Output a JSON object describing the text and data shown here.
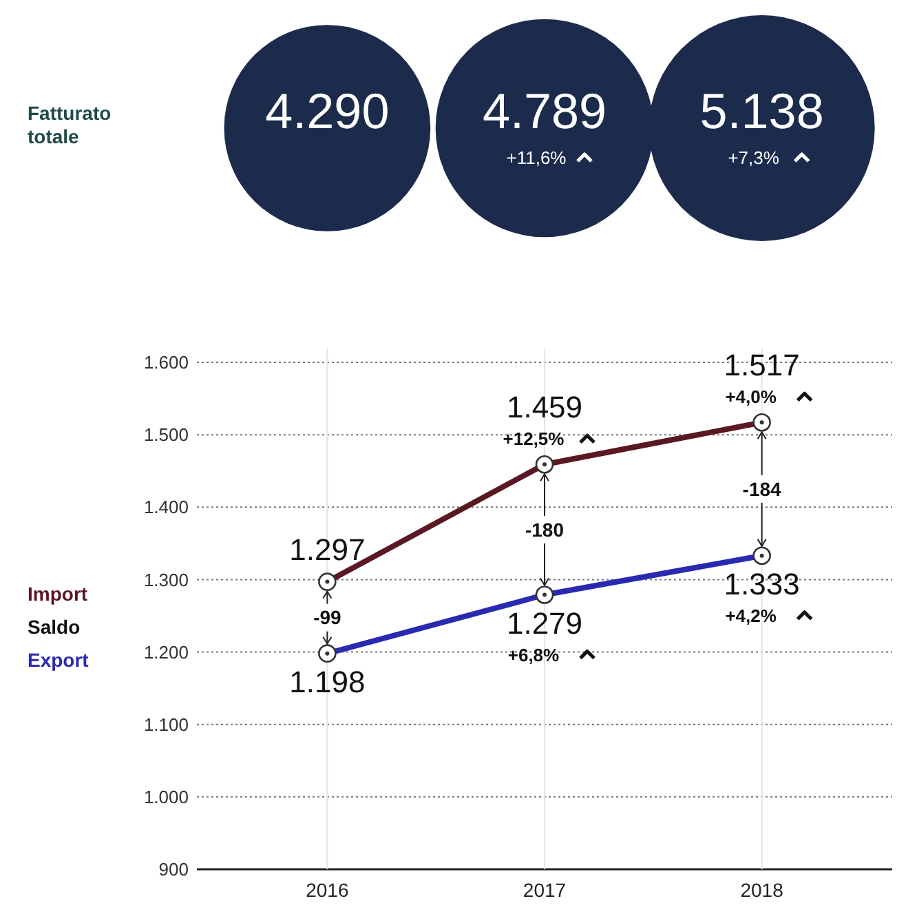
{
  "chart_data": [
    {
      "type": "other",
      "ylabel": "Fatturato totale",
      "values": [
        4290,
        4789,
        5138
      ],
      "value_labels": [
        "4.290",
        "4.789",
        "5.138"
      ],
      "color": "#1c2b4c",
      "annotations": [
        "+11,6%",
        "+7,3%"
      ]
    },
    {
      "type": "line",
      "categories": [
        "2016",
        "2017",
        "2018"
      ],
      "series": [
        {
          "name": "Import",
          "color": "#5a1822",
          "values": [
            1297,
            1459,
            1517
          ],
          "value_labels": [
            "1.297",
            "1.459",
            "1.517"
          ]
        },
        {
          "name": "Export",
          "color": "#2a2ab0",
          "values": [
            1198,
            1279,
            1333
          ],
          "value_labels": [
            "1.198",
            "1.279",
            "1.333"
          ]
        }
      ],
      "ylim": [
        900,
        1600
      ],
      "yticks": [
        {
          "value": 900,
          "label": "900"
        },
        {
          "value": 1000,
          "label": "1.000"
        },
        {
          "value": 1100,
          "label": "1.100"
        },
        {
          "value": 1200,
          "label": "1.200"
        },
        {
          "value": 1300,
          "label": "1.300"
        },
        {
          "value": 1400,
          "label": "1.400"
        },
        {
          "value": 1500,
          "label": "1.500"
        },
        {
          "value": 1600,
          "label": "1.600"
        }
      ],
      "grid": true,
      "legend": "left",
      "marker": "circle",
      "annotations": [
        "Saldo",
        {
          "text": "-99",
          "x": "2016",
          "y": 1247.5
        },
        {
          "text": "-180",
          "x": "2017",
          "y": 1369
        },
        {
          "text": "-184",
          "x": "2018",
          "y": 1425
        },
        {
          "text": "+12,5%",
          "x": "2017",
          "y": 1459
        },
        {
          "text": "+4,0%",
          "x": "2018",
          "y": 1517
        },
        {
          "text": "+6,8%",
          "x": "2017",
          "y": 1279
        },
        {
          "text": "+4,2%",
          "x": "2018",
          "y": 1333
        }
      ]
    }
  ]
}
